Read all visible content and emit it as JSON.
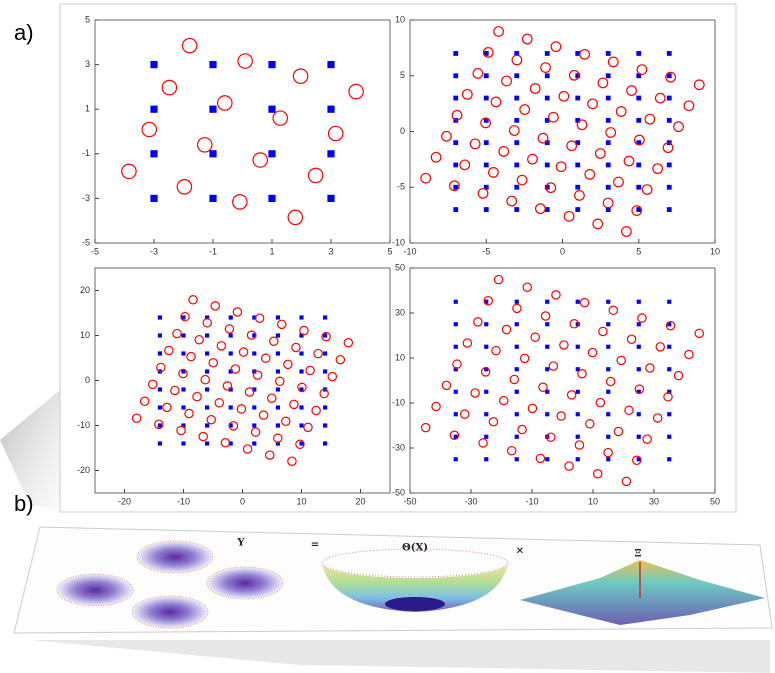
{
  "labels": {
    "a": "a)",
    "b": "b)"
  },
  "equation": [
    "Y",
    "=",
    "Θ(X)",
    "×",
    "Ξ"
  ],
  "chart_data": [
    {
      "type": "scatter",
      "xlim": [
        -5,
        5
      ],
      "ylim": [
        -5,
        5
      ],
      "xticks": [
        -5,
        -3,
        -1,
        1,
        3,
        5
      ],
      "yticks": [
        -5,
        -3,
        -1,
        1,
        3,
        5
      ],
      "series": [
        {
          "color": "#0000ff",
          "marker": "square",
          "x": [
            -3,
            -3,
            -3,
            -3,
            -1,
            -1,
            -1,
            -1,
            1,
            1,
            1,
            1,
            3,
            3,
            3,
            3
          ],
          "values": [
            -3,
            -1,
            1,
            3,
            -3,
            -1,
            1,
            3,
            -3,
            -1,
            1,
            3,
            -3,
            -1,
            1,
            3
          ]
        },
        {
          "color": "#ff0000",
          "marker": "circle",
          "x": [
            -3.85,
            -3.16,
            -2.48,
            -1.79,
            -1.97,
            -1.28,
            -0.6,
            0.09,
            -0.09,
            0.6,
            1.28,
            1.97,
            1.79,
            2.48,
            3.16,
            3.85
          ],
          "values": [
            -1.79,
            0.09,
            1.97,
            3.85,
            -2.48,
            -0.6,
            1.28,
            3.16,
            -3.16,
            -1.28,
            0.6,
            2.48,
            -3.85,
            -1.97,
            -0.09,
            1.79
          ]
        }
      ]
    },
    {
      "type": "scatter",
      "xlim": [
        -10,
        10
      ],
      "ylim": [
        -10,
        10
      ],
      "xticks": [
        -10,
        -5,
        0,
        5,
        10
      ],
      "yticks": [
        -10,
        -5,
        0,
        5,
        10
      ],
      "series": [
        {
          "color": "#0000ff",
          "marker": "square",
          "x": [
            -7,
            -7,
            -7,
            -7,
            -7,
            -7,
            -7,
            -7,
            -5,
            -5,
            -5,
            -5,
            -5,
            -5,
            -5,
            -5,
            -3,
            -3,
            -3,
            -3,
            -3,
            -3,
            -3,
            -3,
            -1,
            -1,
            -1,
            -1,
            -1,
            -1,
            -1,
            -1,
            1,
            1,
            1,
            1,
            1,
            1,
            1,
            1,
            3,
            3,
            3,
            3,
            3,
            3,
            3,
            3,
            5,
            5,
            5,
            5,
            5,
            5,
            5,
            5,
            7,
            7,
            7,
            7,
            7,
            7,
            7,
            7
          ],
          "values": [
            -7,
            -5,
            -3,
            -1,
            1,
            3,
            5,
            7,
            -7,
            -5,
            -3,
            -1,
            1,
            3,
            5,
            7,
            -7,
            -5,
            -3,
            -1,
            1,
            3,
            5,
            7,
            -7,
            -5,
            -3,
            -1,
            1,
            3,
            5,
            7,
            -7,
            -5,
            -3,
            -1,
            1,
            3,
            5,
            7,
            -7,
            -5,
            -3,
            -1,
            1,
            3,
            5,
            7,
            -7,
            -5,
            -3,
            -1,
            1,
            3,
            5,
            7,
            -7,
            -5,
            -3,
            -1,
            1,
            3,
            5,
            7
          ]
        },
        {
          "color": "#ff0000",
          "marker": "circle",
          "x": [
            -8.97,
            -8.29,
            -7.61,
            -6.92,
            -6.24,
            -5.55,
            -4.87,
            -4.19,
            -7.09,
            -6.41,
            -5.73,
            -5.04,
            -4.36,
            -3.67,
            -2.99,
            -2.31,
            -5.21,
            -4.53,
            -3.85,
            -3.16,
            -2.48,
            -1.79,
            -1.11,
            -0.43,
            -3.33,
            -2.65,
            -1.97,
            -1.28,
            -0.6,
            0.09,
            0.77,
            1.45,
            -1.45,
            -0.77,
            -0.09,
            0.6,
            1.28,
            1.97,
            2.65,
            3.33,
            0.43,
            1.11,
            1.79,
            2.48,
            3.16,
            3.85,
            4.53,
            5.21,
            2.31,
            2.99,
            3.67,
            4.36,
            5.04,
            5.73,
            6.41,
            7.09,
            4.19,
            4.87,
            5.55,
            6.24,
            6.92,
            7.61,
            8.29,
            8.97
          ],
          "values": [
            -4.19,
            -2.31,
            -0.43,
            1.45,
            3.33,
            5.21,
            7.09,
            8.97,
            -4.87,
            -2.99,
            -1.11,
            0.77,
            2.65,
            4.53,
            6.41,
            8.29,
            -5.55,
            -3.67,
            -1.79,
            0.09,
            1.97,
            3.85,
            5.73,
            7.61,
            -6.24,
            -4.36,
            -2.48,
            -0.6,
            1.28,
            3.16,
            5.04,
            6.92,
            -6.92,
            -5.04,
            -3.16,
            -1.28,
            0.6,
            2.48,
            4.36,
            6.24,
            -7.61,
            -5.73,
            -3.85,
            -1.97,
            -0.09,
            1.79,
            3.67,
            5.55,
            -8.29,
            -6.41,
            -4.53,
            -2.65,
            -0.77,
            1.11,
            2.99,
            4.87,
            -8.97,
            -7.09,
            -5.21,
            -3.33,
            -1.45,
            0.43,
            2.31,
            4.19
          ]
        }
      ]
    },
    {
      "type": "scatter",
      "xlim": [
        -25,
        25
      ],
      "ylim": [
        -25,
        25
      ],
      "xticks": [
        -20,
        -10,
        0,
        10,
        20
      ],
      "yticks": [
        -20,
        -10,
        0,
        10,
        20
      ],
      "series": [
        {
          "color": "#0000ff",
          "marker": "square",
          "x": [
            -14,
            -14,
            -14,
            -14,
            -14,
            -14,
            -14,
            -14,
            -10,
            -10,
            -10,
            -10,
            -10,
            -10,
            -10,
            -10,
            -6,
            -6,
            -6,
            -6,
            -6,
            -6,
            -6,
            -6,
            -2,
            -2,
            -2,
            -2,
            -2,
            -2,
            -2,
            -2,
            2,
            2,
            2,
            2,
            2,
            2,
            2,
            2,
            6,
            6,
            6,
            6,
            6,
            6,
            6,
            6,
            10,
            10,
            10,
            10,
            10,
            10,
            10,
            10,
            14,
            14,
            14,
            14,
            14,
            14,
            14,
            14
          ],
          "values": [
            -14,
            -10,
            -6,
            -2,
            2,
            6,
            10,
            14,
            -14,
            -10,
            -6,
            -2,
            2,
            6,
            10,
            14,
            -14,
            -10,
            -6,
            -2,
            2,
            6,
            10,
            14,
            -14,
            -10,
            -6,
            -2,
            2,
            6,
            10,
            14,
            -14,
            -10,
            -6,
            -2,
            2,
            6,
            10,
            14,
            -14,
            -10,
            -6,
            -2,
            2,
            6,
            10,
            14,
            -14,
            -10,
            -6,
            -2,
            2,
            6,
            10,
            14,
            -14,
            -10,
            -6,
            -2,
            2,
            6,
            10,
            14
          ]
        },
        {
          "color": "#ff0000",
          "marker": "circle",
          "x": [
            -17.94,
            -16.58,
            -15.22,
            -13.84,
            -12.48,
            -11.1,
            -9.74,
            -8.38,
            -14.18,
            -12.82,
            -11.46,
            -10.08,
            -8.72,
            -7.34,
            -5.98,
            -4.62,
            -10.42,
            -9.06,
            -7.7,
            -6.32,
            -4.96,
            -3.58,
            -2.22,
            -0.86,
            -6.66,
            -5.3,
            -3.94,
            -2.56,
            -1.2,
            0.18,
            1.54,
            2.9,
            -2.9,
            -1.54,
            -0.18,
            1.2,
            2.56,
            3.94,
            5.3,
            6.66,
            0.86,
            2.22,
            3.58,
            4.96,
            6.32,
            7.7,
            9.06,
            10.42,
            4.62,
            5.98,
            7.34,
            8.72,
            10.08,
            11.46,
            12.82,
            14.18,
            8.38,
            9.74,
            11.1,
            12.48,
            13.84,
            15.22,
            16.58,
            17.94
          ],
          "values": [
            -8.38,
            -4.62,
            -0.86,
            2.9,
            6.66,
            10.42,
            14.18,
            17.94,
            -9.74,
            -5.98,
            -2.22,
            1.54,
            5.3,
            9.06,
            12.82,
            16.58,
            -11.1,
            -7.34,
            -3.58,
            0.18,
            3.94,
            7.7,
            11.46,
            15.22,
            -12.48,
            -8.72,
            -4.96,
            -1.2,
            2.56,
            6.32,
            10.08,
            13.84,
            -13.84,
            -10.08,
            -6.32,
            -2.56,
            1.2,
            4.96,
            8.72,
            12.48,
            -15.22,
            -11.46,
            -7.7,
            -3.94,
            -0.18,
            3.58,
            7.34,
            11.1,
            -16.58,
            -12.82,
            -9.06,
            -5.3,
            -1.54,
            2.22,
            5.98,
            9.74,
            -17.94,
            -14.18,
            -10.42,
            -6.66,
            -2.9,
            0.86,
            4.62,
            8.38
          ]
        }
      ]
    },
    {
      "type": "scatter",
      "xlim": [
        -50,
        50
      ],
      "ylim": [
        -50,
        50
      ],
      "xticks": [
        -50,
        -30,
        -10,
        10,
        30,
        50
      ],
      "yticks": [
        -50,
        -30,
        -10,
        10,
        30,
        50
      ],
      "series": [
        {
          "color": "#0000ff",
          "marker": "square",
          "x": [
            -35,
            -35,
            -35,
            -35,
            -35,
            -35,
            -35,
            -35,
            -25,
            -25,
            -25,
            -25,
            -25,
            -25,
            -25,
            -25,
            -15,
            -15,
            -15,
            -15,
            -15,
            -15,
            -15,
            -15,
            -5,
            -5,
            -5,
            -5,
            -5,
            -5,
            -5,
            -5,
            5,
            5,
            5,
            5,
            5,
            5,
            5,
            5,
            15,
            15,
            15,
            15,
            15,
            15,
            15,
            15,
            25,
            25,
            25,
            25,
            25,
            25,
            25,
            25,
            35,
            35,
            35,
            35,
            35,
            35,
            35,
            35
          ],
          "values": [
            -35,
            -25,
            -15,
            -5,
            5,
            15,
            25,
            35,
            -35,
            -25,
            -15,
            -5,
            5,
            15,
            25,
            35,
            -35,
            -25,
            -15,
            -5,
            5,
            15,
            25,
            35,
            -35,
            -25,
            -15,
            -5,
            5,
            15,
            25,
            35,
            -35,
            -25,
            -15,
            -5,
            5,
            15,
            25,
            35,
            -35,
            -25,
            -15,
            -5,
            5,
            15,
            25,
            35,
            -35,
            -25,
            -15,
            -5,
            5,
            15,
            25,
            35,
            -35,
            -25,
            -15,
            -5,
            5,
            15,
            25,
            35
          ]
        },
        {
          "color": "#ff0000",
          "marker": "circle",
          "x": [
            -44.85,
            -41.45,
            -38.05,
            -34.6,
            -31.2,
            -27.75,
            -24.35,
            -20.95,
            -35.45,
            -32.05,
            -28.65,
            -25.2,
            -21.8,
            -18.35,
            -14.95,
            -11.55,
            -26.05,
            -22.65,
            -19.25,
            -15.8,
            -12.4,
            -8.95,
            -5.55,
            -2.15,
            -16.65,
            -13.25,
            -9.85,
            -6.4,
            -3,
            0.45,
            3.85,
            7.25,
            -7.25,
            -3.85,
            -0.45,
            3,
            6.4,
            9.85,
            13.25,
            16.65,
            2.15,
            5.55,
            8.95,
            12.4,
            15.8,
            19.25,
            22.65,
            26.05,
            11.55,
            14.95,
            18.35,
            21.8,
            25.2,
            28.65,
            32.05,
            35.45,
            20.95,
            24.35,
            27.75,
            31.2,
            34.6,
            38.05,
            41.45,
            44.85
          ],
          "values": [
            -20.95,
            -11.55,
            -2.15,
            7.25,
            16.65,
            26.05,
            35.45,
            44.85,
            -24.35,
            -14.95,
            -5.55,
            3.85,
            13.25,
            22.65,
            32.05,
            41.45,
            -27.75,
            -18.35,
            -8.95,
            0.45,
            9.85,
            19.25,
            28.65,
            38.05,
            -31.2,
            -21.8,
            -12.4,
            -3,
            6.4,
            15.8,
            25.2,
            34.6,
            -34.6,
            -25.2,
            -15.8,
            -6.4,
            3,
            12.4,
            21.8,
            31.2,
            -38.05,
            -28.65,
            -19.25,
            -9.85,
            -0.45,
            8.95,
            18.35,
            27.75,
            -41.45,
            -32.05,
            -22.65,
            -13.25,
            -3.85,
            5.55,
            14.95,
            24.35,
            -44.85,
            -35.45,
            -26.05,
            -16.65,
            -7.25,
            2.15,
            11.55,
            20.95
          ]
        }
      ]
    }
  ]
}
